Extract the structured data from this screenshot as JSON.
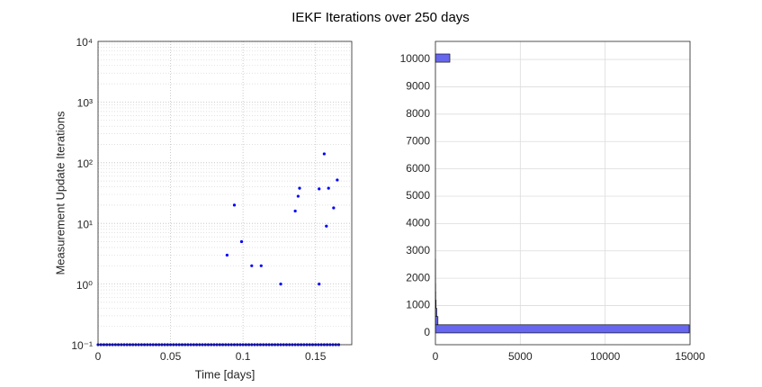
{
  "title": "IEKF Iterations over 250 days",
  "chart_data": [
    {
      "type": "scatter",
      "xlabel": "Time [days]",
      "ylabel": "Measurement Update Iterations",
      "color": "#0000ff",
      "log_y": true,
      "grid": true,
      "minor_grid": true,
      "xlim": [
        0,
        0.175
      ],
      "xticks": [
        0,
        0.05,
        0.1,
        0.15
      ],
      "ylim": [
        0.1,
        10000
      ],
      "yticks": [
        {
          "value": 0.1,
          "label": "10⁻¹"
        },
        {
          "value": 1,
          "label": "10⁰"
        },
        {
          "value": 10,
          "label": "10¹"
        },
        {
          "value": 100,
          "label": "10²"
        },
        {
          "value": 1000,
          "label": "10³"
        },
        {
          "value": 10000,
          "label": "10⁴"
        }
      ],
      "x": [
        0,
        0.002,
        0.004,
        0.006,
        0.008,
        0.01,
        0.012,
        0.014,
        0.016,
        0.018,
        0.02,
        0.022,
        0.024,
        0.026,
        0.028,
        0.03,
        0.032,
        0.034,
        0.036,
        0.038,
        0.04,
        0.042,
        0.044,
        0.046,
        0.048,
        0.05,
        0.052,
        0.054,
        0.056,
        0.058,
        0.06,
        0.062,
        0.064,
        0.066,
        0.068,
        0.07,
        0.072,
        0.074,
        0.076,
        0.078,
        0.08,
        0.082,
        0.084,
        0.086,
        0.088,
        0.09,
        0.092,
        0.094,
        0.096,
        0.098,
        0.1,
        0.102,
        0.104,
        0.106,
        0.108,
        0.11,
        0.112,
        0.114,
        0.116,
        0.118,
        0.12,
        0.122,
        0.124,
        0.126,
        0.128,
        0.13,
        0.132,
        0.134,
        0.136,
        0.138,
        0.14,
        0.142,
        0.144,
        0.146,
        0.148,
        0.15,
        0.152,
        0.154,
        0.156,
        0.158,
        0.16,
        0.162,
        0.164,
        0.166,
        0.089,
        0.094,
        0.099,
        0.106,
        0.1125,
        0.126,
        0.136,
        0.138,
        0.139,
        0.1525,
        0.1525,
        0.156,
        0.1575,
        0.159,
        0.1625,
        0.165
      ],
      "values": [
        0.1,
        0.1,
        0.1,
        0.1,
        0.1,
        0.1,
        0.1,
        0.1,
        0.1,
        0.1,
        0.1,
        0.1,
        0.1,
        0.1,
        0.1,
        0.1,
        0.1,
        0.1,
        0.1,
        0.1,
        0.1,
        0.1,
        0.1,
        0.1,
        0.1,
        0.1,
        0.1,
        0.1,
        0.1,
        0.1,
        0.1,
        0.1,
        0.1,
        0.1,
        0.1,
        0.1,
        0.1,
        0.1,
        0.1,
        0.1,
        0.1,
        0.1,
        0.1,
        0.1,
        0.1,
        0.1,
        0.1,
        0.1,
        0.1,
        0.1,
        0.1,
        0.1,
        0.1,
        0.1,
        0.1,
        0.1,
        0.1,
        0.1,
        0.1,
        0.1,
        0.1,
        0.1,
        0.1,
        0.1,
        0.1,
        0.1,
        0.1,
        0.1,
        0.1,
        0.1,
        0.1,
        0.1,
        0.1,
        0.1,
        0.1,
        0.1,
        0.1,
        0.1,
        0.1,
        0.1,
        0.1,
        0.1,
        0.1,
        0.1,
        3,
        20,
        5,
        2,
        2,
        1,
        16,
        28,
        38,
        37,
        1,
        140,
        9,
        38,
        18,
        52
      ]
    },
    {
      "type": "histogram",
      "orientation": "horizontal",
      "color": "#6666ee",
      "grid": true,
      "xlim": [
        0,
        15000
      ],
      "xticks": [
        0,
        5000,
        10000,
        15000
      ],
      "ylim": [
        -430,
        10660
      ],
      "yticks": [
        0,
        1000,
        2000,
        3000,
        4000,
        5000,
        6000,
        7000,
        8000,
        9000,
        10000
      ],
      "bins": [
        0,
        300,
        600,
        900,
        1200,
        1500,
        1800,
        2100,
        2400,
        2700,
        3000,
        3300,
        3600,
        3900,
        4200,
        4500,
        4800,
        5100,
        5400,
        5700,
        6000,
        6300,
        6600,
        6900,
        7200,
        7500,
        7800,
        8100,
        8400,
        8700,
        9000,
        9300,
        9600,
        9900,
        10200
      ],
      "values": [
        14950,
        150,
        80,
        40,
        20,
        15,
        10,
        8,
        5,
        0,
        0,
        0,
        0,
        0,
        0,
        0,
        0,
        0,
        0,
        0,
        0,
        0,
        0,
        0,
        0,
        0,
        0,
        0,
        0,
        0,
        0,
        0,
        0,
        850
      ]
    }
  ]
}
